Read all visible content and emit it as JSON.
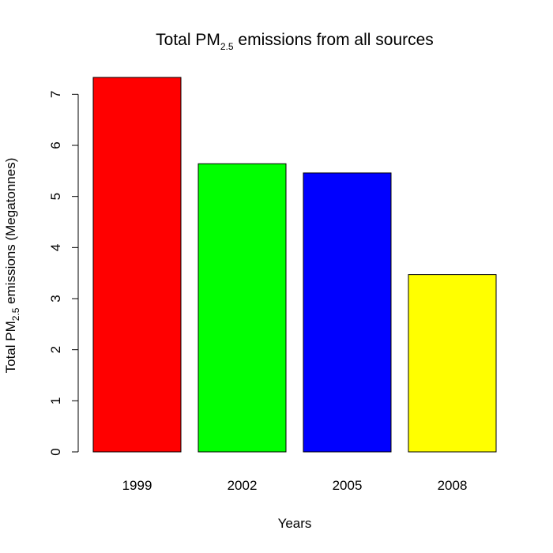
{
  "chart_data": {
    "type": "bar",
    "title": {
      "prefix": "Total PM",
      "subscript": "2.5",
      "suffix": " emissions from all sources"
    },
    "xlabel": "Years",
    "ylabel": {
      "prefix": "Total PM",
      "subscript": "2.5",
      "suffix": " emissions (Megatonnes)"
    },
    "categories": [
      "1999",
      "2002",
      "2005",
      "2008"
    ],
    "values": [
      7.33,
      5.64,
      5.46,
      3.47
    ],
    "colors": [
      "#ff0000",
      "#00ff00",
      "#0000ff",
      "#ffff00"
    ],
    "yticks": [
      0,
      1,
      2,
      3,
      4,
      5,
      6,
      7
    ],
    "ylim": [
      0,
      7.33
    ],
    "grid": false,
    "legend": "none"
  }
}
